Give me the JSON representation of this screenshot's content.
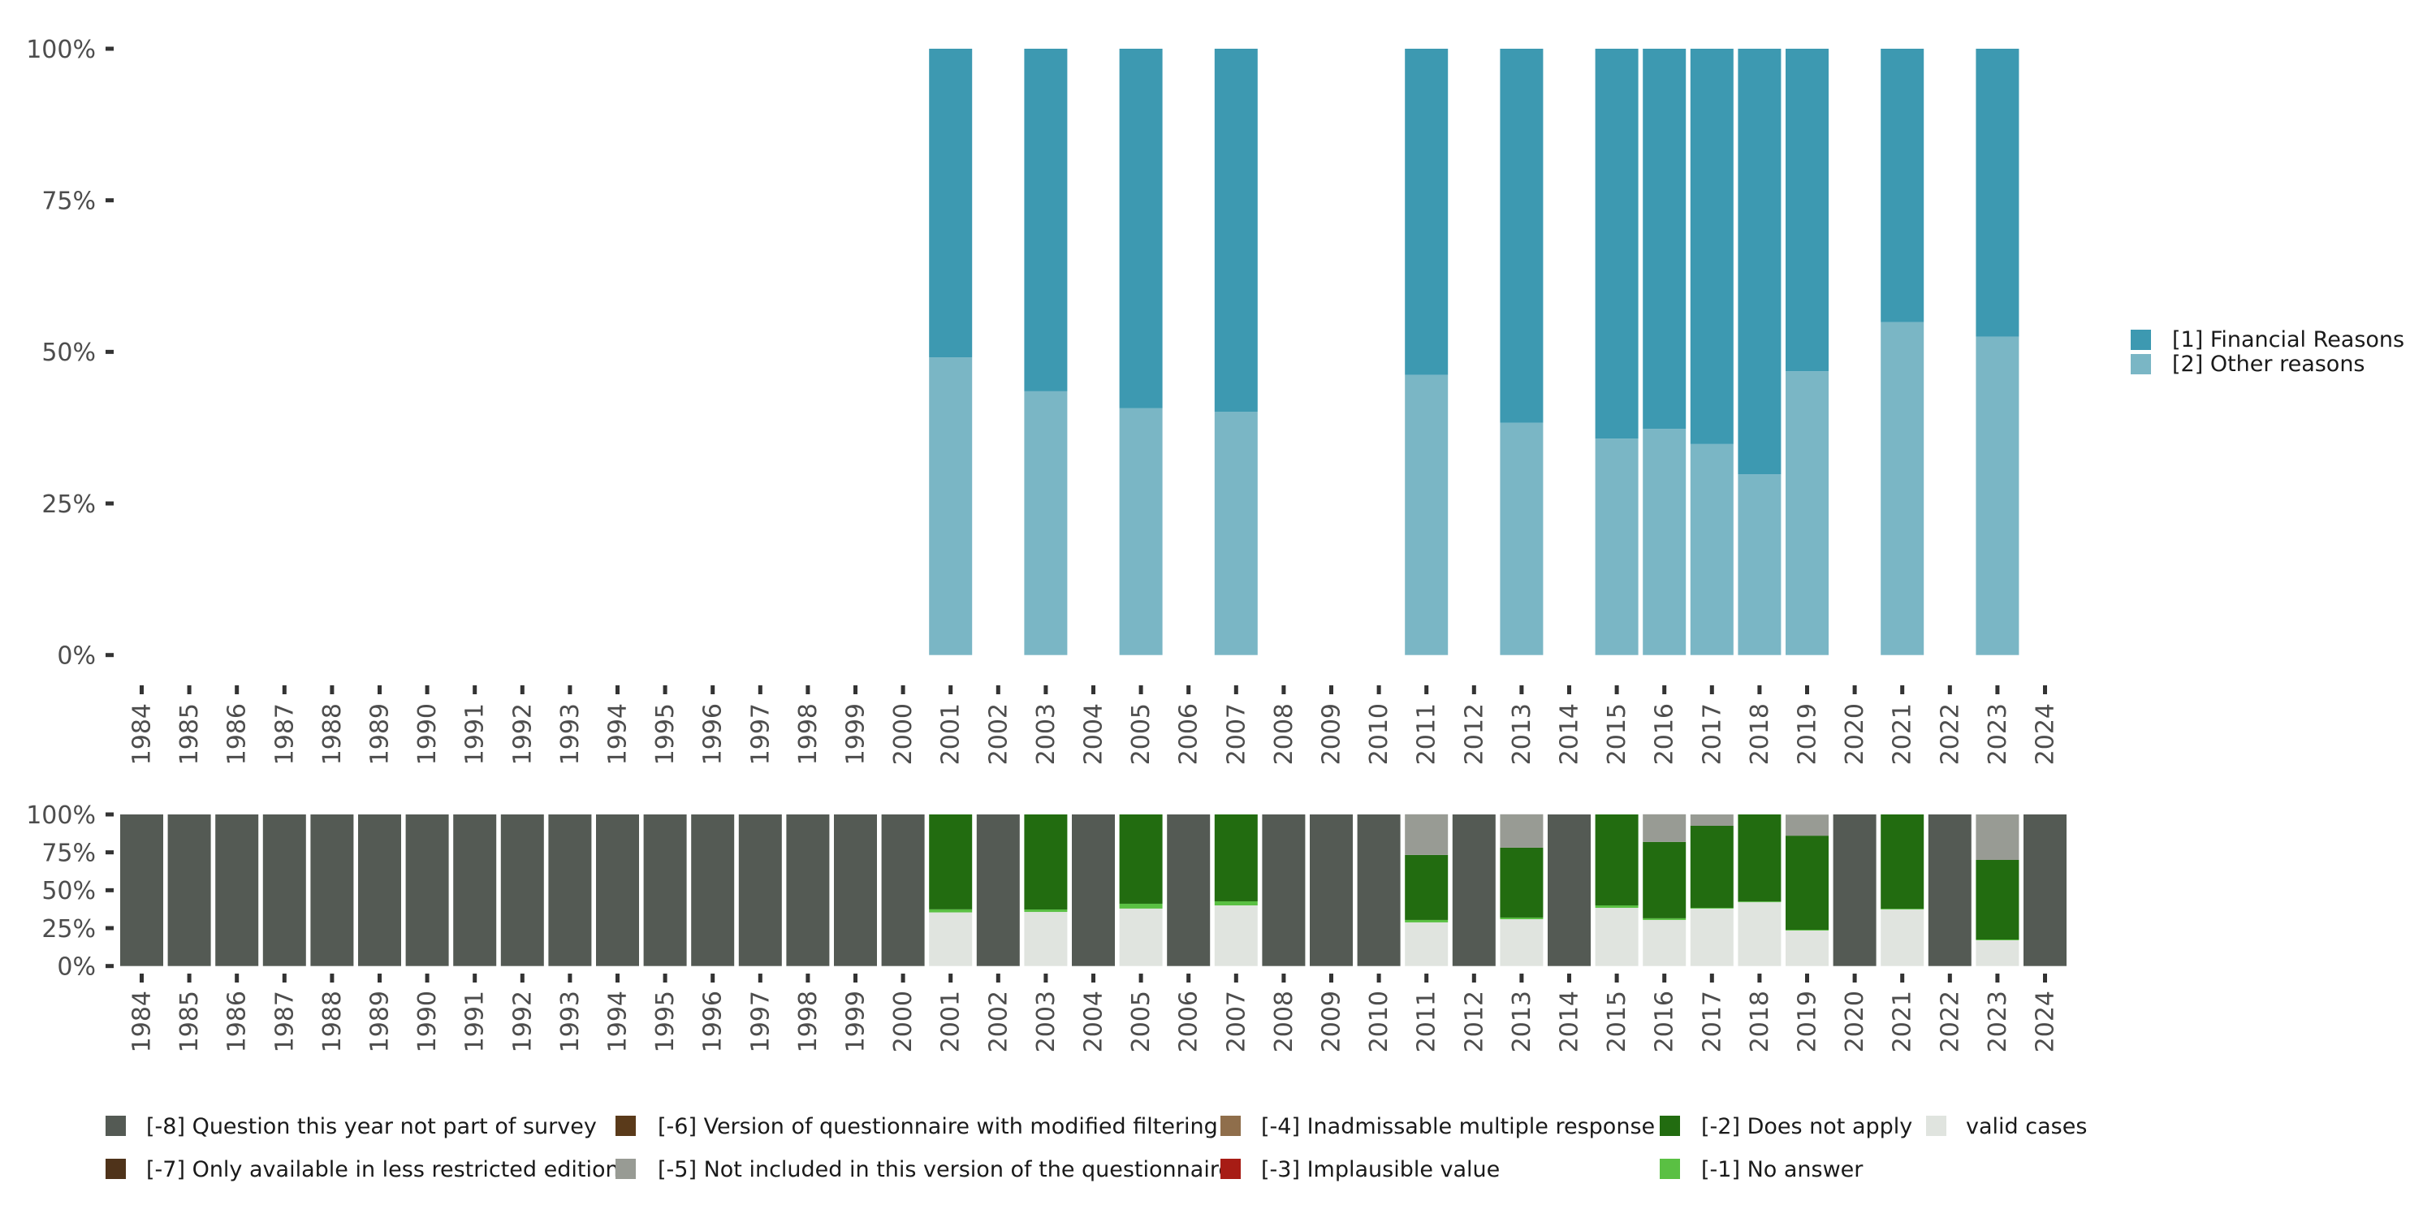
{
  "chart_data": [
    {
      "type": "bar",
      "stacked": true,
      "normalized": true,
      "title": "",
      "xlabel": "",
      "ylabel": "",
      "ylim": [
        0,
        100
      ],
      "yticks": [
        "0%",
        "25%",
        "50%",
        "75%",
        "100%"
      ],
      "categories": [
        "1984",
        "1985",
        "1986",
        "1987",
        "1988",
        "1989",
        "1990",
        "1991",
        "1992",
        "1993",
        "1994",
        "1995",
        "1996",
        "1997",
        "1998",
        "1999",
        "2000",
        "2001",
        "2002",
        "2003",
        "2004",
        "2005",
        "2006",
        "2007",
        "2008",
        "2009",
        "2010",
        "2011",
        "2012",
        "2013",
        "2014",
        "2015",
        "2016",
        "2017",
        "2018",
        "2019",
        "2020",
        "2021",
        "2022",
        "2023",
        "2024"
      ],
      "bar_years": [
        "2001",
        "2003",
        "2005",
        "2007",
        "2011",
        "2013",
        "2015",
        "2016",
        "2017",
        "2018",
        "2019",
        "2021",
        "2023"
      ],
      "series": [
        {
          "name": "[2] Other reasons",
          "color": "#7ab6c5",
          "values": [
            49.1,
            43.5,
            40.7,
            40.1,
            46.2,
            38.3,
            35.7,
            37.3,
            34.8,
            29.8,
            46.8,
            54.9,
            52.5
          ]
        },
        {
          "name": "[1] Financial Reasons",
          "color": "#3d99b1",
          "values": [
            50.9,
            56.5,
            59.3,
            59.9,
            53.8,
            61.7,
            64.3,
            62.7,
            65.2,
            70.2,
            53.2,
            45.1,
            47.5
          ]
        }
      ],
      "legend": {
        "position": "right",
        "entries": [
          {
            "label": "[1] Financial Reasons",
            "color": "#3d99b1"
          },
          {
            "label": "[2] Other reasons",
            "color": "#7ab6c5"
          }
        ]
      },
      "grid": false
    },
    {
      "type": "bar",
      "stacked": true,
      "normalized": true,
      "title": "",
      "xlabel": "",
      "ylabel": "",
      "ylim": [
        0,
        100
      ],
      "yticks": [
        "0%",
        "25%",
        "50%",
        "75%",
        "100%"
      ],
      "categories": [
        "1984",
        "1985",
        "1986",
        "1987",
        "1988",
        "1989",
        "1990",
        "1991",
        "1992",
        "1993",
        "1994",
        "1995",
        "1996",
        "1997",
        "1998",
        "1999",
        "2000",
        "2001",
        "2002",
        "2003",
        "2004",
        "2005",
        "2006",
        "2007",
        "2008",
        "2009",
        "2010",
        "2011",
        "2012",
        "2013",
        "2014",
        "2015",
        "2016",
        "2017",
        "2018",
        "2019",
        "2020",
        "2021",
        "2022",
        "2023",
        "2024"
      ],
      "series": [
        {
          "name": "valid cases",
          "color": "#e0e4df",
          "values": [
            0,
            0,
            0,
            0,
            0,
            0,
            0,
            0,
            0,
            0,
            0,
            0,
            0,
            0,
            0,
            0,
            0,
            35.4,
            0,
            35.7,
            0,
            37.9,
            0,
            40.0,
            0,
            0,
            0,
            28.8,
            0,
            30.9,
            0,
            38.4,
            30.4,
            37.9,
            42.1,
            23.4,
            0,
            37.3,
            0,
            17.0,
            0
          ]
        },
        {
          "name": "[-1] No answer",
          "color": "#5ac043",
          "values": [
            0,
            0,
            0,
            0,
            0,
            0,
            0,
            0,
            0,
            0,
            0,
            0,
            0,
            0,
            0,
            0,
            0,
            2.0,
            0,
            1.6,
            0,
            3.2,
            0,
            2.7,
            0,
            0,
            0,
            1.6,
            0,
            1.1,
            0,
            1.6,
            1.1,
            0.5,
            0.5,
            0.5,
            0,
            0.5,
            0,
            0.5,
            0
          ]
        },
        {
          "name": "[-2] Does not apply",
          "color": "#226c10",
          "values": [
            0,
            0,
            0,
            0,
            0,
            0,
            0,
            0,
            0,
            0,
            0,
            0,
            0,
            0,
            0,
            0,
            0,
            62.6,
            0,
            62.7,
            0,
            58.9,
            0,
            57.3,
            0,
            0,
            0,
            42.9,
            0,
            46.1,
            0,
            60.0,
            50.4,
            54.1,
            57.4,
            62.1,
            0,
            62.2,
            0,
            52.5,
            0
          ]
        },
        {
          "name": "[-5] Not included in this version of the questionnaire",
          "color": "#989b94",
          "values": [
            0,
            0,
            0,
            0,
            0,
            0,
            0,
            0,
            0,
            0,
            0,
            0,
            0,
            0,
            0,
            0,
            0,
            0,
            0,
            0,
            0,
            0,
            0,
            0,
            0,
            0,
            0,
            26.8,
            0,
            22.0,
            0,
            0,
            18.2,
            7.5,
            0,
            13.9,
            0,
            0,
            0,
            30.0,
            0
          ]
        },
        {
          "name": "[-8] Question this year not part of survey",
          "color": "#545a54",
          "values": [
            100,
            100,
            100,
            100,
            100,
            100,
            100,
            100,
            100,
            100,
            100,
            100,
            100,
            100,
            100,
            100,
            100,
            0,
            100,
            0,
            100,
            0,
            100,
            0,
            100,
            100,
            100,
            0,
            100,
            0,
            100,
            0,
            0,
            0,
            0,
            0,
            100,
            0,
            100,
            0,
            100
          ]
        }
      ],
      "legend": {
        "position": "bottom",
        "entries": [
          {
            "label": "[-8] Question this year not part of survey",
            "color": "#545a54"
          },
          {
            "label": "[-7] Only available in less restricted edition",
            "color": "#4f331a"
          },
          {
            "label": "[-6] Version of questionnaire with modified filtering",
            "color": "#5a3a1a"
          },
          {
            "label": "[-5] Not included in this version of the questionnaire",
            "color": "#989b94"
          },
          {
            "label": "[-4] Inadmissable multiple response",
            "color": "#8f6e4b"
          },
          {
            "label": "[-3] Implausible value",
            "color": "#a71c15"
          },
          {
            "label": "[-2] Does not apply",
            "color": "#226c10"
          },
          {
            "label": "[-1] No answer",
            "color": "#5ac043"
          },
          {
            "label": "valid cases",
            "color": "#e0e4df"
          }
        ]
      },
      "grid": false
    }
  ]
}
